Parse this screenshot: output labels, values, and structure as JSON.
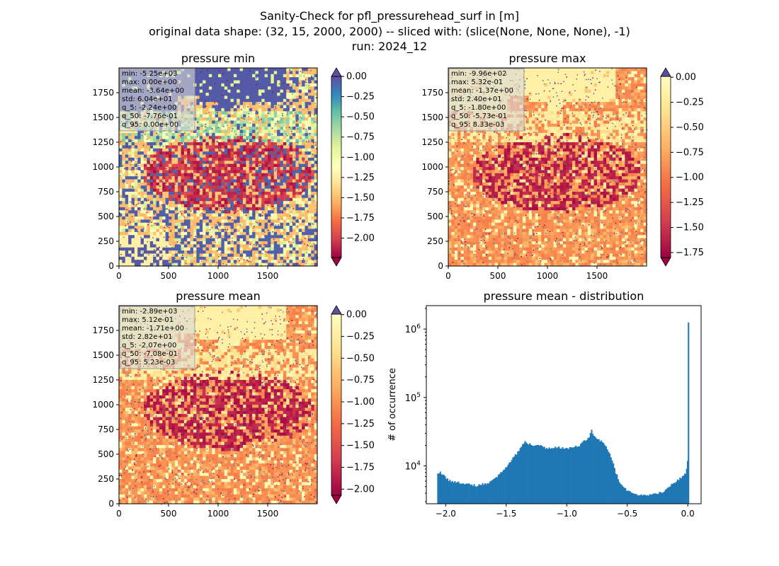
{
  "figure": {
    "title_lines": [
      "Sanity-Check for pfl_pressurehead_surf in [m]",
      "original data shape: (32, 15, 2000, 2000) -- sliced with: (slice(None, None, None), -1)",
      "run: 2024_12"
    ]
  },
  "chart_data": [
    {
      "type": "heatmap",
      "title": "pressure min",
      "colormap": "Spectral",
      "x_ticks": [
        "0",
        "500",
        "1000",
        "1500"
      ],
      "y_ticks": [
        "0",
        "250",
        "500",
        "750",
        "1000",
        "1250",
        "1500",
        "1750"
      ],
      "xlim": [
        0,
        2000
      ],
      "ylim": [
        0,
        2000
      ],
      "stats": [
        "min: -5.25e+03",
        "max: 0.00e+00",
        "mean: -3.64e+00",
        "std: 6.04e+01",
        "q_5: -2.24e+00",
        "q_50: -7.76e-01",
        "q_95: 0.00e+00"
      ],
      "colorbar": {
        "vmin": -2.24,
        "vmax": 0.0,
        "extend": "both",
        "ticks": [
          0.0,
          -0.25,
          -0.5,
          -0.75,
          -1.0,
          -1.25,
          -1.5,
          -1.75,
          -2.0
        ],
        "tick_labels": [
          "0.00",
          "−0.25",
          "−0.50",
          "−0.75",
          "−1.00",
          "−1.25",
          "−1.50",
          "−1.75",
          "−2.00"
        ]
      }
    },
    {
      "type": "heatmap",
      "title": "pressure max",
      "colormap": "Spectral",
      "x_ticks": [
        "0",
        "500",
        "1000",
        "1500"
      ],
      "y_ticks": [
        "0",
        "250",
        "500",
        "750",
        "1000",
        "1250",
        "1500",
        "1750"
      ],
      "xlim": [
        0,
        2000
      ],
      "ylim": [
        0,
        2000
      ],
      "stats": [
        "min: -9.96e+02",
        "max: 5.32e-01",
        "mean: -1.37e+00",
        "std: 2.40e+01",
        "q_5: -1.80e+00",
        "q_50: -5.73e-01",
        "q_95: 8.33e-03"
      ],
      "colorbar": {
        "vmin": -1.8,
        "vmax": 0.0083,
        "extend": "both",
        "ticks": [
          0.0,
          -0.25,
          -0.5,
          -0.75,
          -1.0,
          -1.25,
          -1.5,
          -1.75
        ],
        "tick_labels": [
          "0.00",
          "−0.25",
          "−0.50",
          "−0.75",
          "−1.00",
          "−1.25",
          "−1.50",
          "−1.75"
        ]
      }
    },
    {
      "type": "heatmap",
      "title": "pressure mean",
      "colormap": "Spectral",
      "x_ticks": [
        "0",
        "500",
        "1000",
        "1500"
      ],
      "y_ticks": [
        "0",
        "250",
        "500",
        "750",
        "1000",
        "1250",
        "1500",
        "1750"
      ],
      "xlim": [
        0,
        2000
      ],
      "ylim": [
        0,
        2000
      ],
      "stats": [
        "min: -2.89e+03",
        "max: 5.12e-01",
        "mean: -1.71e+00",
        "std: 2.82e+01",
        "q_5: -2.07e+00",
        "q_50: -7.08e-01",
        "q_95: 5.23e-03"
      ],
      "colorbar": {
        "vmin": -2.07,
        "vmax": 0.0052,
        "extend": "both",
        "ticks": [
          0.0,
          -0.25,
          -0.5,
          -0.75,
          -1.0,
          -1.25,
          -1.5,
          -1.75,
          -2.0
        ],
        "tick_labels": [
          "0.00",
          "−0.25",
          "−0.50",
          "−0.75",
          "−1.00",
          "−1.25",
          "−1.50",
          "−1.75",
          "−2.00"
        ]
      }
    },
    {
      "type": "bar",
      "title": "pressure mean - distribution",
      "ylabel": "# of occurrence",
      "y_scale": "log",
      "xlim": [
        -2.16,
        0.11
      ],
      "ylim": [
        2800,
        2200000
      ],
      "x_ticks": [
        -2.0,
        -1.5,
        -1.0,
        -0.5,
        0.0
      ],
      "x_tick_labels": [
        "−2.0",
        "−1.5",
        "−1.0",
        "−0.5",
        "0.0"
      ],
      "y_ticks": [
        10000,
        100000,
        1000000
      ],
      "y_tick_labels": [
        "10^4",
        "10^5",
        "10^6"
      ],
      "bar_color": "#1f77b4",
      "bin_width": 0.0104,
      "histogram": [
        [
          -2.07,
          7800
        ],
        [
          -2.05,
          8200
        ],
        [
          -2.03,
          7500
        ],
        [
          -2.0,
          6500
        ],
        [
          -1.96,
          6000
        ],
        [
          -1.9,
          5800
        ],
        [
          -1.85,
          5500
        ],
        [
          -1.8,
          5300
        ],
        [
          -1.75,
          5200
        ],
        [
          -1.7,
          5400
        ],
        [
          -1.65,
          5700
        ],
        [
          -1.6,
          6500
        ],
        [
          -1.55,
          8000
        ],
        [
          -1.5,
          10000
        ],
        [
          -1.46,
          12500
        ],
        [
          -1.42,
          15000
        ],
        [
          -1.38,
          19000
        ],
        [
          -1.35,
          23000
        ],
        [
          -1.32,
          21000
        ],
        [
          -1.28,
          20000
        ],
        [
          -1.22,
          19500
        ],
        [
          -1.18,
          18500
        ],
        [
          -1.15,
          18000
        ],
        [
          -1.1,
          19000
        ],
        [
          -1.05,
          18500
        ],
        [
          -1.0,
          18000
        ],
        [
          -0.95,
          18500
        ],
        [
          -0.9,
          20000
        ],
        [
          -0.86,
          23000
        ],
        [
          -0.82,
          27000
        ],
        [
          -0.8,
          33000
        ],
        [
          -0.78,
          28000
        ],
        [
          -0.75,
          25000
        ],
        [
          -0.72,
          23000
        ],
        [
          -0.68,
          19000
        ],
        [
          -0.65,
          15000
        ],
        [
          -0.62,
          11000
        ],
        [
          -0.6,
          8000
        ],
        [
          -0.57,
          6000
        ],
        [
          -0.54,
          5000
        ],
        [
          -0.5,
          4300
        ],
        [
          -0.45,
          4000
        ],
        [
          -0.4,
          3800
        ],
        [
          -0.35,
          3700
        ],
        [
          -0.3,
          3800
        ],
        [
          -0.25,
          4000
        ],
        [
          -0.2,
          4300
        ],
        [
          -0.17,
          4800
        ],
        [
          -0.15,
          5200
        ],
        [
          -0.12,
          5600
        ],
        [
          -0.1,
          6000
        ],
        [
          -0.07,
          6500
        ],
        [
          -0.05,
          7000
        ],
        [
          -0.03,
          7500
        ],
        [
          -0.015,
          9000
        ],
        [
          -0.007,
          12000
        ],
        [
          0.0,
          1300000
        ]
      ]
    }
  ]
}
